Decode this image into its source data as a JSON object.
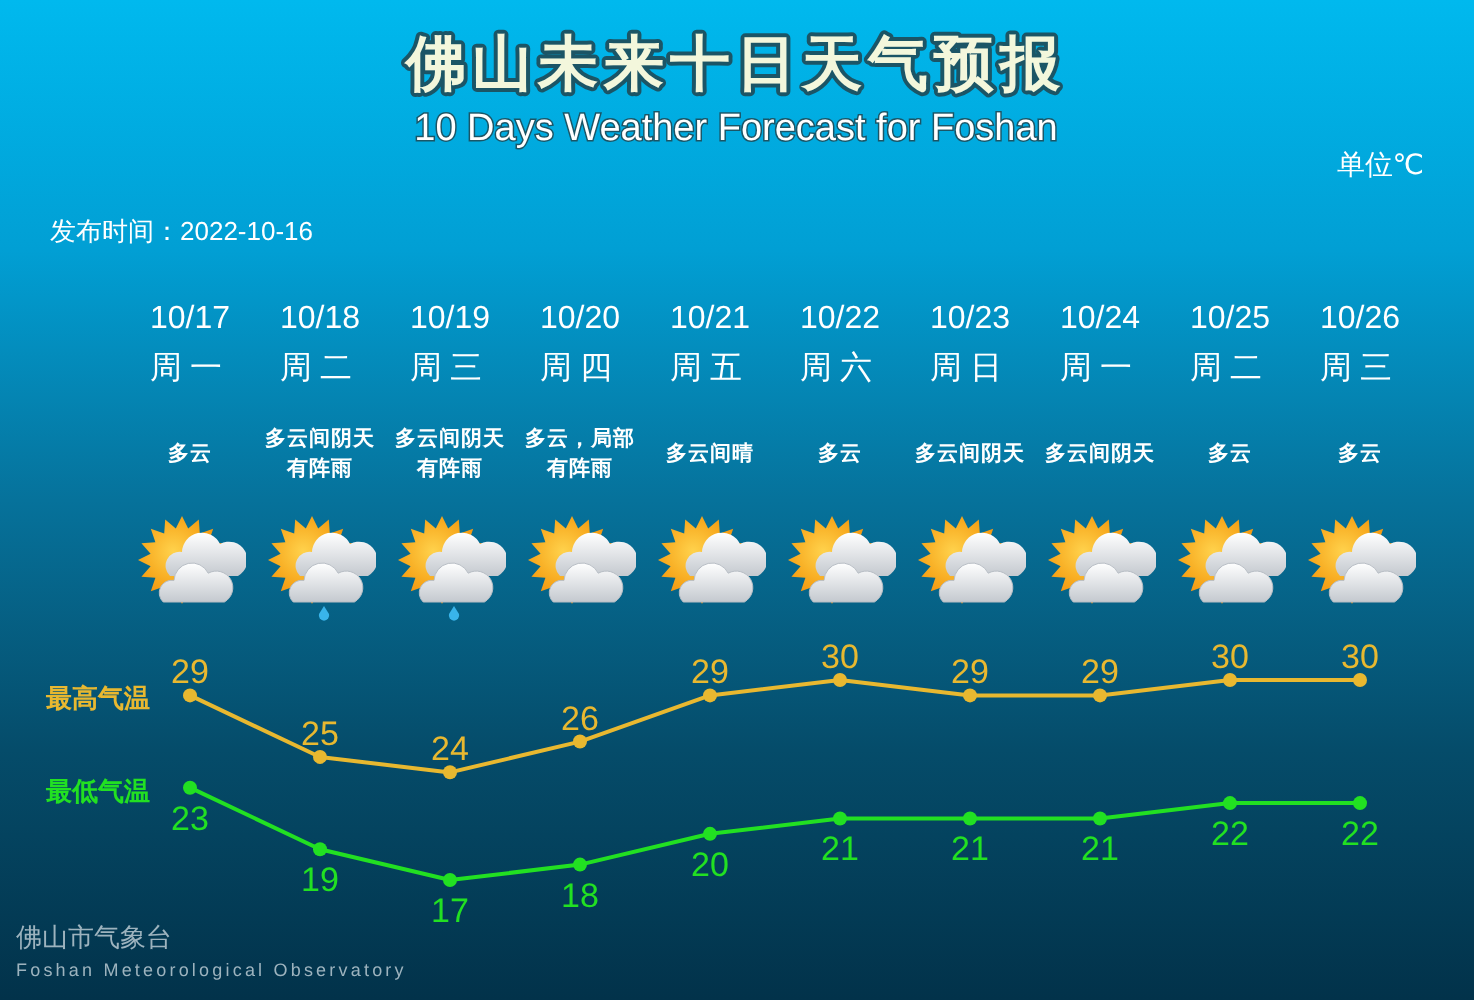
{
  "chart_data": {
    "type": "line",
    "title": "佛山未来十日天气预报",
    "subtitle": "10 Days Weather Forecast for Foshan",
    "categories": [
      "10/17\n周一",
      "10/18\n周二",
      "10/19\n周三",
      "10/20\n周四",
      "10/21\n周五",
      "10/22\n周六",
      "10/23\n周日",
      "10/24\n周一",
      "10/25\n周二",
      "10/26\n周三"
    ],
    "series": [
      {
        "name": "最高气温",
        "color": "#e8b830",
        "values": [
          29,
          25,
          24,
          26,
          29,
          30,
          29,
          29,
          30,
          30
        ]
      },
      {
        "name": "最低气温",
        "color": "#22e022",
        "values": [
          23,
          19,
          17,
          18,
          20,
          21,
          21,
          21,
          22,
          22
        ]
      }
    ],
    "data_labels": true,
    "marker": "circle",
    "annotations": [
      "单位℃",
      "发布时间：2022-10-16",
      "佛山市气象台",
      "Foshan Meteorological Observatory",
      "多云",
      "多云间阴天有阵雨",
      "多云间阴天有阵雨",
      "多云，局部有阵雨",
      "多云间晴",
      "多云",
      "多云间阴天",
      "多云间阴天",
      "多云",
      "多云"
    ]
  }
}
